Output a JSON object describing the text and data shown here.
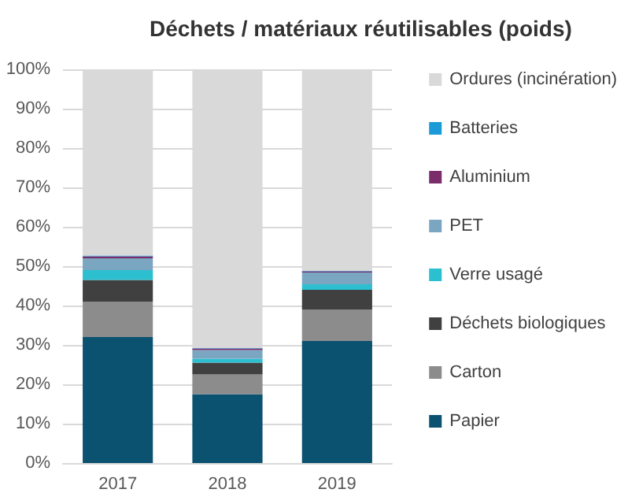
{
  "chart_data": {
    "type": "bar",
    "title": "Déchets / matériaux réutilisables (poids)",
    "stacked": true,
    "categories": [
      "2017",
      "2018",
      "2019"
    ],
    "series": [
      {
        "name": "Papier",
        "color": "#0b5170",
        "values": [
          32,
          17.5,
          31
        ]
      },
      {
        "name": "Carton",
        "color": "#8c8c8c",
        "values": [
          9,
          5,
          8
        ]
      },
      {
        "name": "Déchets biologiques",
        "color": "#404040",
        "values": [
          5.5,
          3,
          5
        ]
      },
      {
        "name": "Verre usagé",
        "color": "#2bbfcf",
        "values": [
          2.5,
          1,
          1.4
        ]
      },
      {
        "name": "PET",
        "color": "#7aa6c2",
        "values": [
          3,
          2.2,
          3
        ]
      },
      {
        "name": "Aluminium",
        "color": "#7b2d6b",
        "values": [
          0.5,
          0.4,
          0.3
        ]
      },
      {
        "name": "Batteries",
        "color": "#1a9ad6",
        "values": [
          0.2,
          0.1,
          0.1
        ]
      },
      {
        "name": "Ordures (incinération)",
        "color": "#d9d9d9",
        "values": [
          47.3,
          70.8,
          51.2
        ]
      }
    ],
    "ylim": [
      0,
      100
    ],
    "yticks": [
      {
        "value": 0,
        "label": "0%"
      },
      {
        "value": 10,
        "label": "10%"
      },
      {
        "value": 20,
        "label": "20%"
      },
      {
        "value": 30,
        "label": "30%"
      },
      {
        "value": 40,
        "label": "40%"
      },
      {
        "value": 50,
        "label": "50%"
      },
      {
        "value": 60,
        "label": "60%"
      },
      {
        "value": 70,
        "label": "70%"
      },
      {
        "value": 80,
        "label": "80%"
      },
      {
        "value": 90,
        "label": "90%"
      },
      {
        "value": 100,
        "label": "100%"
      }
    ],
    "grid": "y",
    "legend": "right"
  }
}
